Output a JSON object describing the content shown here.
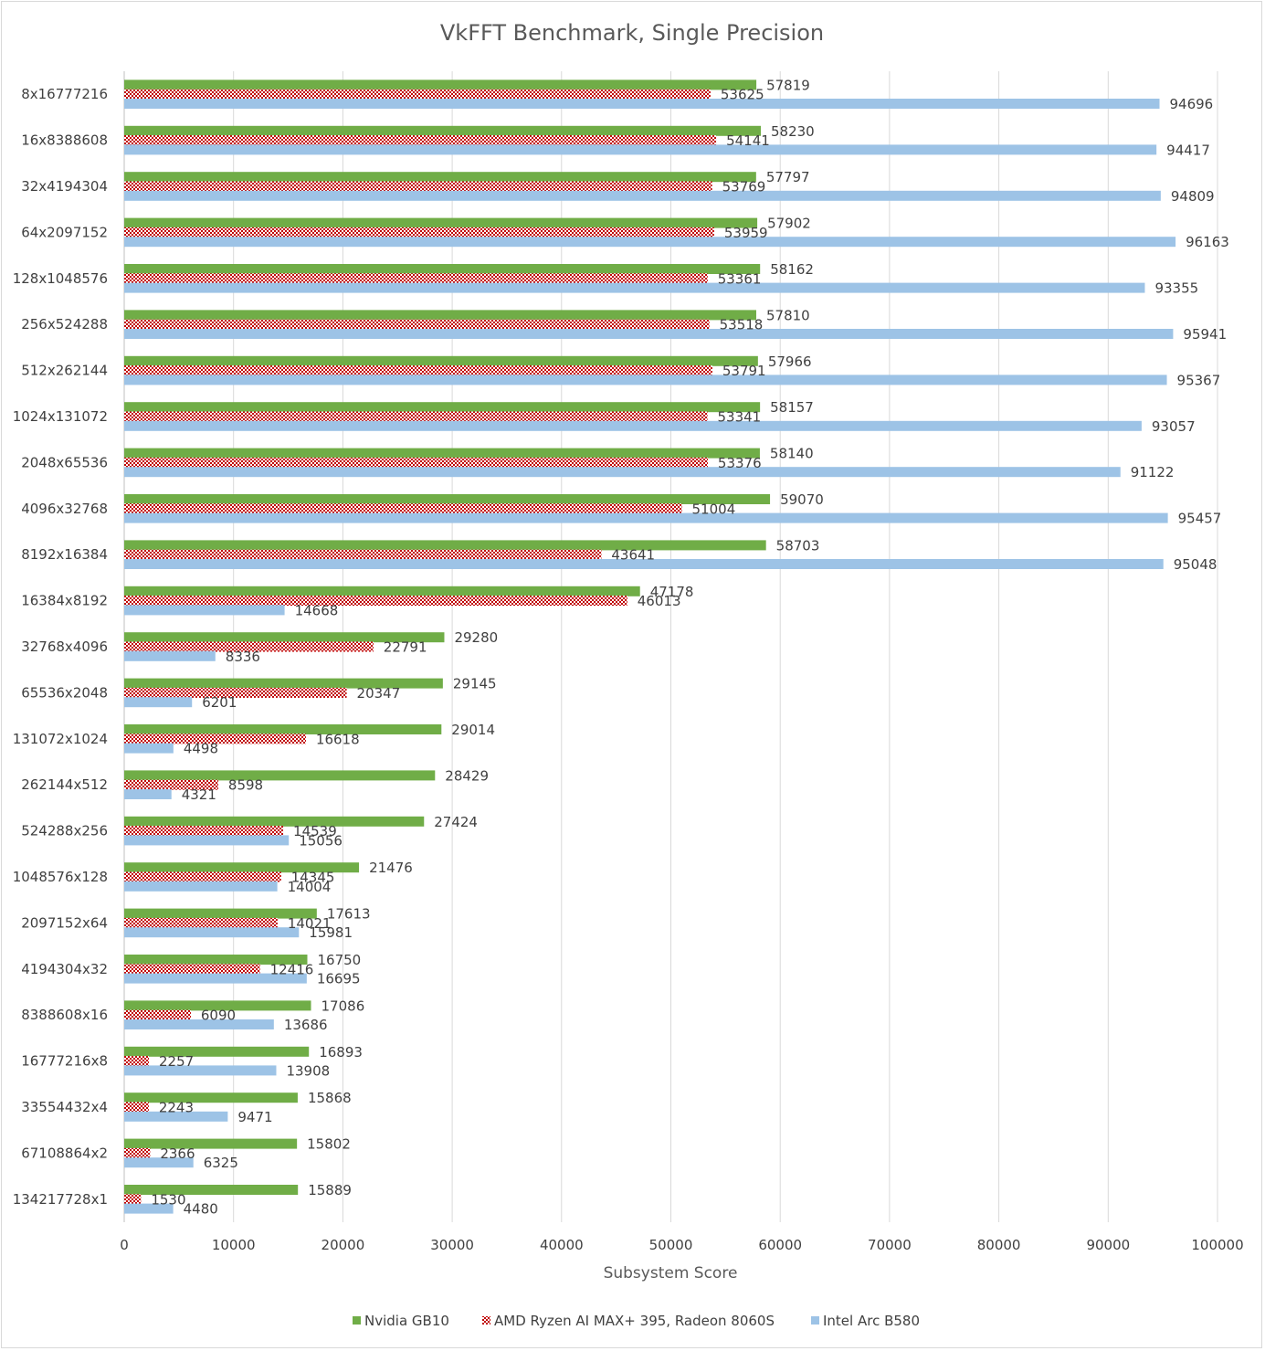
{
  "chart_data": {
    "type": "bar",
    "orientation": "horizontal",
    "title": "VkFFT Benchmark, Single Precision",
    "xlabel": "Subsystem Score",
    "ylabel": "",
    "xlim": [
      0,
      100000
    ],
    "xticks": [
      0,
      10000,
      20000,
      30000,
      40000,
      50000,
      60000,
      70000,
      80000,
      90000,
      100000
    ],
    "grid": true,
    "legend_position": "bottom",
    "categories": [
      "8x16777216",
      "16x8388608",
      "32x4194304",
      "64x2097152",
      "128x1048576",
      "256x524288",
      "512x262144",
      "1024x131072",
      "2048x65536",
      "4096x32768",
      "8192x16384",
      "16384x8192",
      "32768x4096",
      "65536x2048",
      "131072x1024",
      "262144x512",
      "524288x256",
      "1048576x128",
      "2097152x64",
      "4194304x32",
      "8388608x16",
      "16777216x8",
      "33554432x4",
      "67108864x2",
      "134217728x1"
    ],
    "series": [
      {
        "name": "Nvidia GB10",
        "color": "#70ad47",
        "pattern": "solid",
        "values": [
          57819,
          58230,
          57797,
          57902,
          58162,
          57810,
          57966,
          58157,
          58140,
          59070,
          58703,
          47178,
          29280,
          29145,
          29014,
          28429,
          27424,
          21476,
          17613,
          16750,
          17086,
          16893,
          15868,
          15802,
          15889
        ]
      },
      {
        "name": "AMD Ryzen AI MAX+ 395, Radeon 8060S",
        "color": "#c00000",
        "pattern": "checker",
        "values": [
          53625,
          54141,
          53769,
          53959,
          53361,
          53518,
          53791,
          53341,
          53376,
          51004,
          43641,
          46013,
          22791,
          20347,
          16618,
          8598,
          14539,
          14345,
          14021,
          12416,
          6090,
          2257,
          2243,
          2366,
          1530
        ]
      },
      {
        "name": "Intel Arc B580",
        "color": "#9dc3e6",
        "pattern": "solid",
        "values": [
          94696,
          94417,
          94809,
          96163,
          93355,
          95941,
          95367,
          93057,
          91122,
          95457,
          95048,
          14668,
          8336,
          6201,
          4498,
          4321,
          15056,
          14004,
          15981,
          16695,
          13686,
          13908,
          9471,
          6325,
          4480
        ]
      }
    ]
  }
}
